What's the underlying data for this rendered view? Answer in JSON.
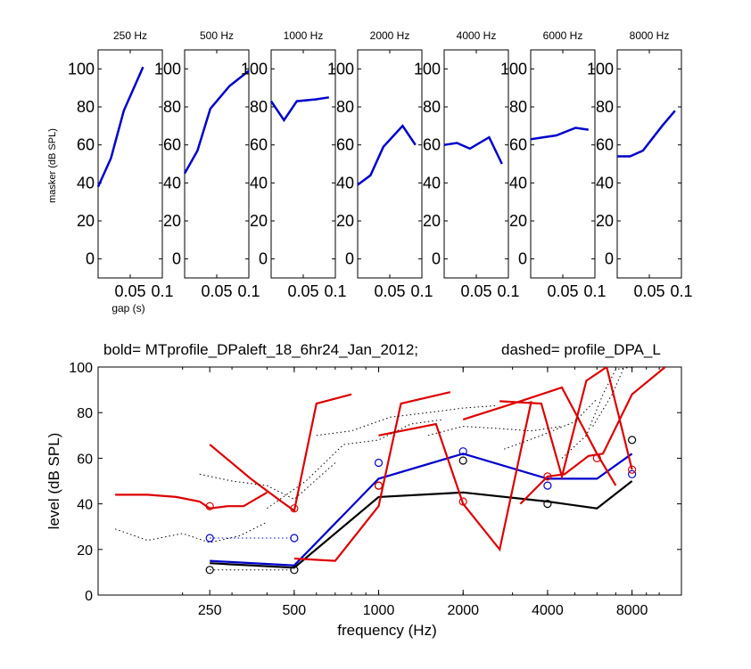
{
  "figure": {
    "top_panel_xlabel": "gap (s)",
    "top_panel_ylabel": "masker (dB SPL)",
    "bottom_title_left": "bold= MTprofile_DPaleft_18_6hr24_Jan_2012;",
    "bottom_title_right": "dashed=  profile_DPA_L",
    "bottom_xlabel": "frequency (Hz)",
    "bottom_ylabel": "level (dB SPL)"
  },
  "colors": {
    "blue": "#0000cc",
    "red": "#dd0000",
    "black": "#000000"
  },
  "chart_data": [
    {
      "type": "line",
      "title": "250 Hz",
      "xlabel": "gap (s)",
      "ylabel": "masker (dB SPL)",
      "xlim": [
        0,
        0.1
      ],
      "ylim": [
        -10,
        110
      ],
      "xticks": [
        0.05,
        0.1
      ],
      "xtick_labels": [
        "0.05",
        "0.1"
      ],
      "yticks": [
        0,
        20,
        40,
        60,
        80,
        100
      ],
      "ytick_labels": [
        "0",
        "20",
        "40",
        "60",
        "80",
        "100"
      ],
      "series": [
        {
          "x": [
            0,
            0.02,
            0.04,
            0.07
          ],
          "y": [
            38,
            53,
            78,
            101
          ],
          "color": "#0000cc"
        }
      ]
    },
    {
      "type": "line",
      "title": "500 Hz",
      "xlim": [
        0,
        0.1
      ],
      "ylim": [
        -10,
        110
      ],
      "xticks": [
        0.05,
        0.1
      ],
      "xtick_labels": [
        "0.05",
        "0.1"
      ],
      "yticks": [
        0,
        20,
        40,
        60,
        80,
        100
      ],
      "ytick_labels": [
        "0",
        "20",
        "40",
        "60",
        "80",
        "100"
      ],
      "series": [
        {
          "x": [
            0,
            0.02,
            0.04,
            0.07,
            0.1
          ],
          "y": [
            45,
            57,
            79,
            91,
            99
          ],
          "color": "#0000cc"
        }
      ]
    },
    {
      "type": "line",
      "title": "1000 Hz",
      "xlim": [
        0,
        0.1
      ],
      "ylim": [
        -10,
        110
      ],
      "xticks": [
        0.05,
        0.1
      ],
      "xtick_labels": [
        "0.05",
        "0.1"
      ],
      "yticks": [
        0,
        20,
        40,
        60,
        80,
        100
      ],
      "ytick_labels": [
        "0",
        "20",
        "40",
        "60",
        "80",
        "100"
      ],
      "series": [
        {
          "x": [
            0,
            0.02,
            0.04,
            0.07,
            0.09
          ],
          "y": [
            83,
            73,
            83,
            84,
            85
          ],
          "color": "#0000cc"
        }
      ]
    },
    {
      "type": "line",
      "title": "2000 Hz",
      "xlim": [
        0,
        0.1
      ],
      "ylim": [
        -10,
        110
      ],
      "xticks": [
        0.05,
        0.1
      ],
      "xtick_labels": [
        "0.05",
        "0.1"
      ],
      "yticks": [
        0,
        20,
        40,
        60,
        80,
        100
      ],
      "ytick_labels": [
        "0",
        "20",
        "40",
        "60",
        "80",
        "100"
      ],
      "series": [
        {
          "x": [
            0,
            0.02,
            0.04,
            0.07,
            0.09
          ],
          "y": [
            39,
            44,
            59,
            70,
            60
          ],
          "color": "#0000cc"
        }
      ]
    },
    {
      "type": "line",
      "title": "4000 Hz",
      "xlim": [
        0,
        0.1
      ],
      "ylim": [
        -10,
        110
      ],
      "xticks": [
        0.05,
        0.1
      ],
      "xtick_labels": [
        "0.05",
        "0.1"
      ],
      "yticks": [
        0,
        20,
        40,
        60,
        80,
        100
      ],
      "ytick_labels": [
        "0",
        "20",
        "40",
        "60",
        "80",
        "100"
      ],
      "series": [
        {
          "x": [
            0,
            0.02,
            0.04,
            0.07,
            0.09
          ],
          "y": [
            60,
            61,
            58,
            64,
            50
          ],
          "color": "#0000cc"
        }
      ]
    },
    {
      "type": "line",
      "title": "6000 Hz",
      "xlim": [
        0,
        0.1
      ],
      "ylim": [
        -10,
        110
      ],
      "xticks": [
        0.05,
        0.1
      ],
      "xtick_labels": [
        "0.05",
        "0.1"
      ],
      "yticks": [
        0,
        20,
        40,
        60,
        80,
        100
      ],
      "ytick_labels": [
        "0",
        "20",
        "40",
        "60",
        "80",
        "100"
      ],
      "series": [
        {
          "x": [
            0,
            0.02,
            0.04,
            0.07,
            0.09
          ],
          "y": [
            63,
            64,
            65,
            69,
            68
          ],
          "color": "#0000cc"
        }
      ]
    },
    {
      "type": "line",
      "title": "8000 Hz",
      "xlim": [
        0,
        0.1
      ],
      "ylim": [
        -10,
        110
      ],
      "xticks": [
        0.05,
        0.1
      ],
      "xtick_labels": [
        "0.05",
        "0.1"
      ],
      "yticks": [
        0,
        20,
        40,
        60,
        80,
        100
      ],
      "ytick_labels": [
        "0",
        "20",
        "40",
        "60",
        "80",
        "100"
      ],
      "series": [
        {
          "x": [
            0,
            0.02,
            0.04,
            0.07,
            0.09
          ],
          "y": [
            54,
            54,
            57,
            70,
            78
          ],
          "color": "#0000cc"
        }
      ]
    },
    {
      "type": "line",
      "title": "bold= MTprofile_DPaleft_18_6hr24_Jan_2012;          dashed=  profile_DPA_L",
      "xlabel": "frequency (Hz)",
      "ylabel": "level (dB SPL)",
      "xscale": "log",
      "xlim": [
        100,
        12000
      ],
      "ylim": [
        0,
        100
      ],
      "xticks": [
        250,
        500,
        1000,
        2000,
        4000,
        8000
      ],
      "xtick_labels": [
        "250",
        "500",
        "1000",
        "2000",
        "4000",
        "8000"
      ],
      "yticks": [
        0,
        20,
        40,
        60,
        80,
        100
      ],
      "ytick_labels": [
        "0",
        "20",
        "40",
        "60",
        "80",
        "100"
      ],
      "series": [
        {
          "style": "solid",
          "color": "#0000cc",
          "marker": "o",
          "x": [
            250,
            500,
            1000,
            2000,
            4000,
            6000,
            8000
          ],
          "y": [
            15,
            13,
            51,
            62,
            51,
            51,
            62
          ]
        },
        {
          "style": "solid",
          "color": "#000000",
          "marker": "o",
          "x": [
            250,
            500,
            1000,
            2000,
            4000,
            6000,
            8000
          ],
          "y": [
            14,
            12,
            43,
            45,
            41,
            38,
            50
          ]
        },
        {
          "style": "dotted",
          "color": "#000000",
          "marker": "o",
          "x": [
            250,
            500
          ],
          "y": [
            11,
            11
          ]
        },
        {
          "style": "dotted",
          "color": "#0000cc",
          "marker": "o",
          "x": [
            250,
            500
          ],
          "y": [
            25,
            25
          ]
        },
        {
          "style": "markers",
          "color": "#000000",
          "marker": "o",
          "x": [
            250,
            500,
            1000,
            2000,
            4000,
            8000
          ],
          "y": [
            11,
            11,
            48,
            59,
            40,
            68
          ]
        },
        {
          "style": "markers",
          "color": "#0000cc",
          "marker": "o",
          "x": [
            250,
            500,
            1000,
            2000,
            4000,
            8000
          ],
          "y": [
            25,
            25,
            58,
            63,
            48,
            53
          ]
        },
        {
          "style": "markers",
          "color": "#dd0000",
          "marker": "o",
          "x": [
            250,
            500,
            1000,
            2000,
            4000,
            6000,
            8000
          ],
          "y": [
            39,
            38,
            48,
            41,
            52,
            60,
            55
          ]
        },
        {
          "style": "solid",
          "color": "#dd0000",
          "x": [
            115,
            150,
            190,
            230,
            250,
            290,
            330,
            400
          ],
          "y": [
            44,
            44,
            43,
            41,
            38,
            39,
            39,
            45
          ]
        },
        {
          "style": "solid",
          "color": "#dd0000",
          "x": [
            250,
            350,
            450,
            500,
            600,
            800
          ],
          "y": [
            66,
            51,
            41,
            37,
            84,
            88
          ]
        },
        {
          "style": "solid",
          "color": "#dd0000",
          "x": [
            500,
            700,
            1000,
            1200,
            1800
          ],
          "y": [
            16,
            15,
            39,
            84,
            89
          ]
        },
        {
          "style": "solid",
          "color": "#dd0000",
          "x": [
            1000,
            1600,
            2000,
            2700,
            3500
          ],
          "y": [
            70,
            75,
            40,
            20,
            85
          ]
        },
        {
          "style": "solid",
          "color": "#dd0000",
          "x": [
            2000,
            3200,
            4500,
            6000,
            7000
          ],
          "y": [
            77,
            85,
            91,
            62,
            48
          ]
        },
        {
          "style": "solid",
          "color": "#dd0000",
          "x": [
            2700,
            3800,
            4500,
            5500,
            6500,
            8000
          ],
          "y": [
            85,
            84,
            52,
            94,
            100,
            55
          ]
        },
        {
          "style": "solid",
          "color": "#dd0000",
          "x": [
            3200,
            4000,
            4600,
            5600,
            6300,
            8000,
            10500
          ],
          "y": [
            40,
            52,
            53,
            61,
            62,
            88,
            100
          ]
        },
        {
          "style": "dotted",
          "color": "#000000",
          "x": [
            115,
            150,
            200,
            250,
            320,
            400
          ],
          "y": [
            29,
            24,
            27,
            23,
            26,
            32
          ]
        },
        {
          "style": "dotted",
          "color": "#000000",
          "x": [
            230,
            300,
            400,
            500,
            700
          ],
          "y": [
            53,
            50,
            48,
            42,
            58
          ]
        },
        {
          "style": "dotted",
          "color": "#000000",
          "x": [
            400,
            550,
            750,
            1000,
            1300,
            1700
          ],
          "y": [
            38,
            50,
            66,
            68,
            75,
            77
          ]
        },
        {
          "style": "dotted",
          "color": "#000000",
          "x": [
            600,
            800,
            1100,
            1500,
            2000,
            2600
          ],
          "y": [
            70,
            72,
            78,
            80,
            82,
            83
          ]
        },
        {
          "style": "dotted",
          "color": "#000000",
          "x": [
            1500,
            2000,
            2700,
            3500,
            4500
          ],
          "y": [
            70,
            74,
            73,
            72,
            74
          ]
        },
        {
          "style": "dotted",
          "color": "#000000",
          "x": [
            2800,
            3800,
            5000,
            6000
          ],
          "y": [
            64,
            70,
            76,
            86
          ]
        },
        {
          "style": "dotted",
          "color": "#000000",
          "x": [
            4500,
            5500,
            6300,
            7000,
            8000
          ],
          "y": [
            60,
            70,
            88,
            99,
            100
          ]
        },
        {
          "style": "dotted",
          "color": "#000000",
          "x": [
            5800,
            6800,
            7500,
            8500
          ],
          "y": [
            74,
            88,
            100,
            100
          ]
        }
      ]
    }
  ]
}
